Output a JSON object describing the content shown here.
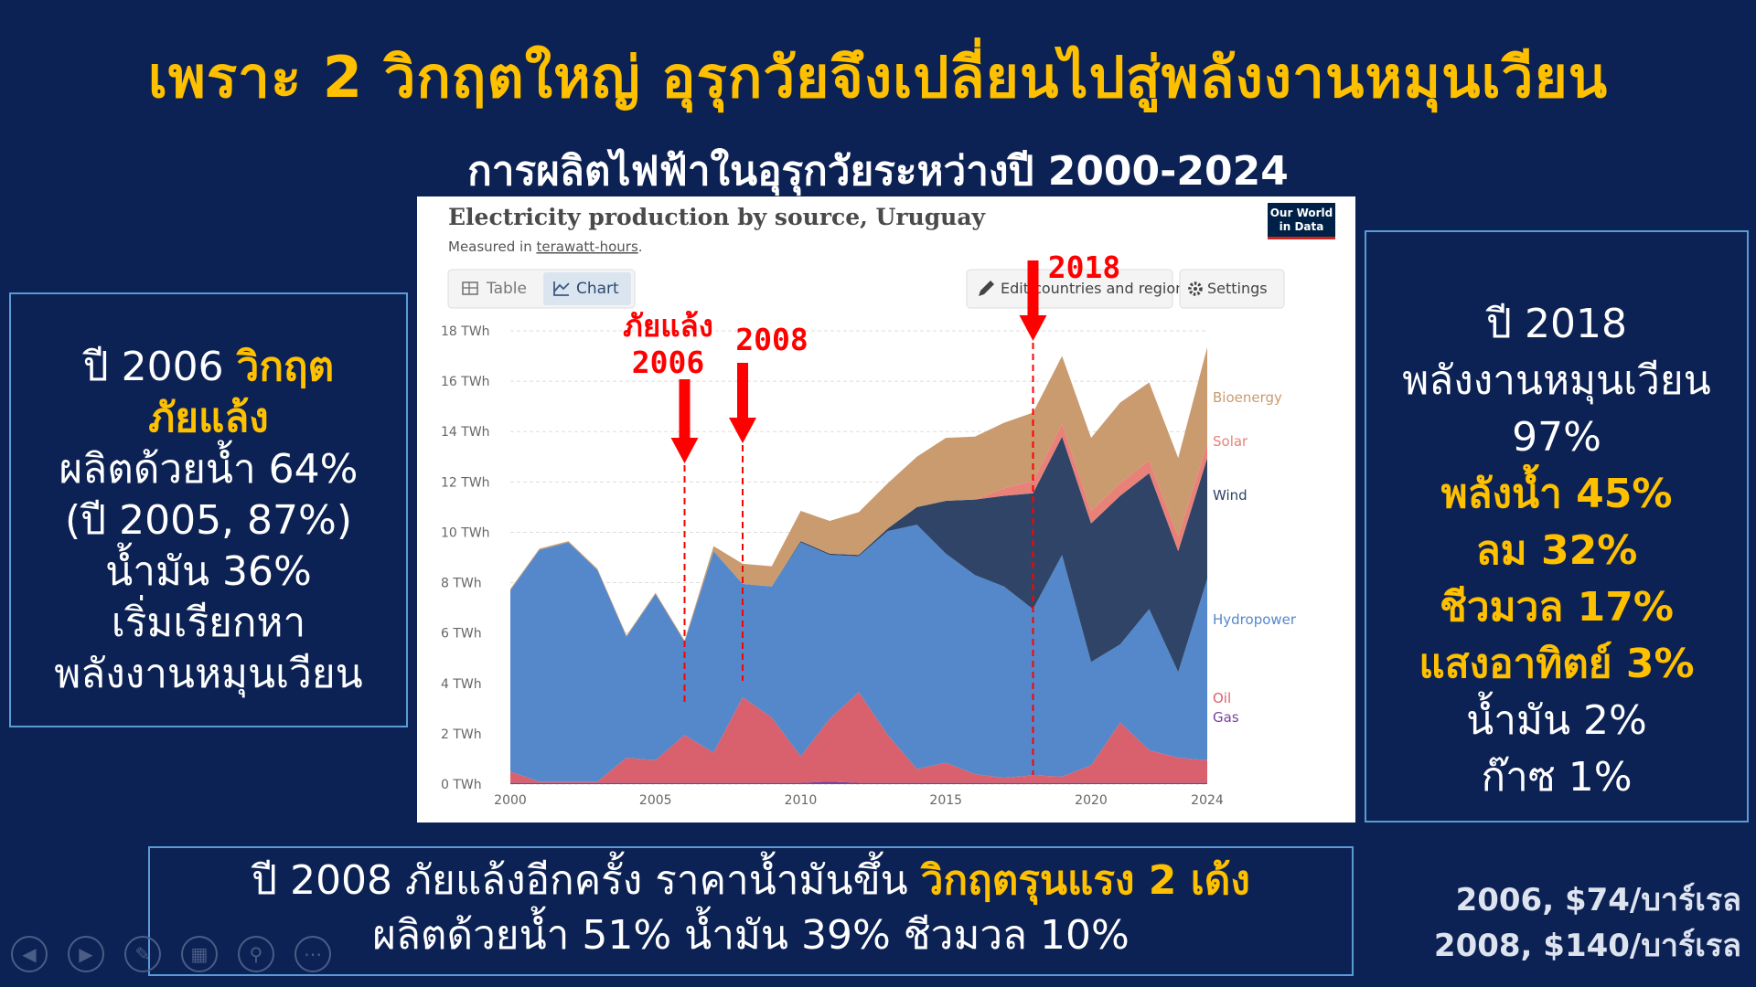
{
  "slide": {
    "title": "เพราะ 2 วิกฤตใหญ่  อุรุกวัยจึงเปลี่ยนไปสู่พลังงานหมุนเวียน",
    "subtitle": "การผลิตไฟฟ้าในอุรุกวัยระหว่างปี 2000-2024"
  },
  "left_box": {
    "line1_prefix": "ปี 2006 ",
    "line1_hl": "วิกฤต",
    "line2_hl": "ภัยแล้ง",
    "line3": "ผลิตด้วยน้ำ 64%",
    "line4": "(ปี 2005, 87%)",
    "line5": "น้ำมัน 36%",
    "line6": "เริ่มเรียกหา",
    "line7": "พลังงานหมุนเวียน"
  },
  "right_box": {
    "line1": "ปี 2018",
    "line2": "พลังงานหมุนเวียน",
    "line3": "97%",
    "hl1": "พลังน้ำ 45%",
    "hl2": "ลม 32%",
    "hl3": "ชีวมวล 17%",
    "hl4": "แสงอาทิตย์ 3%",
    "line4": "น้ำมัน 2%",
    "line5": "ก๊าซ 1%"
  },
  "bottom_box": {
    "line1_prefix": "ปี 2008 ภัยแล้งอีกครั้ง ราคาน้ำมันขึ้น ",
    "line1_hl": "วิกฤตรุนแรง 2 เด้ง",
    "line2": "ผลิตด้วยน้ำ  51%  น้ำมัน  39%  ชีวมวล 10%"
  },
  "price_note": {
    "line1": "2006, $74/บาร์เรล",
    "line2": "2008, $140/บาร์เรล"
  },
  "chart_header": {
    "title": "Electricity production by source, Uruguay",
    "subtitle_prefix": "Measured in ",
    "subtitle_link": "terawatt-hours",
    "subtitle_suffix": ".",
    "logo_line1": "Our World",
    "logo_line2": "in Data",
    "tab_table": "Table",
    "tab_chart": "Chart",
    "edit_button": "Edit countries and regions",
    "settings_button": "Settings"
  },
  "annotations": {
    "drought_label_1": "ภัยแล้ง",
    "drought_label_2": "2006",
    "label_2008": "2008",
    "label_2018": "2018"
  },
  "colors": {
    "background": "#0c2254",
    "accent": "#ffc000",
    "annotation": "#ff0000"
  },
  "chart_data": {
    "type": "area",
    "stacked": true,
    "title": "Electricity production by source, Uruguay",
    "subtitle": "Measured in terawatt-hours.",
    "x": [
      2000,
      2001,
      2002,
      2003,
      2004,
      2005,
      2006,
      2007,
      2008,
      2009,
      2010,
      2011,
      2012,
      2013,
      2014,
      2015,
      2016,
      2017,
      2018,
      2019,
      2020,
      2021,
      2022,
      2023,
      2024
    ],
    "ylim": [
      0,
      18
    ],
    "y_ticks": [
      "0 TWh",
      "2 TWh",
      "4 TWh",
      "6 TWh",
      "8 TWh",
      "10 TWh",
      "12 TWh",
      "14 TWh",
      "16 TWh",
      "18 TWh"
    ],
    "x_ticks": [
      "2000",
      "2005",
      "2010",
      "2015",
      "2020",
      "2024"
    ],
    "series": [
      {
        "name": "Gas",
        "color": "#7b3f9e",
        "values": [
          0.05,
          0.05,
          0.05,
          0.05,
          0.05,
          0.05,
          0.05,
          0.05,
          0.05,
          0.05,
          0.05,
          0.1,
          0.05,
          0.05,
          0.05,
          0.05,
          0.05,
          0.05,
          0.05,
          0.05,
          0.05,
          0.05,
          0.05,
          0.05,
          0.05
        ]
      },
      {
        "name": "Oil",
        "color": "#d9616e",
        "values": [
          0.45,
          0.05,
          0.05,
          0.05,
          1.0,
          0.9,
          1.9,
          1.2,
          3.4,
          2.6,
          1.05,
          2.5,
          3.6,
          1.9,
          0.55,
          0.8,
          0.35,
          0.2,
          0.3,
          0.25,
          0.7,
          2.4,
          1.3,
          1.0,
          0.9
        ]
      },
      {
        "name": "Hydropower",
        "color": "#5488ca",
        "values": [
          7.2,
          9.2,
          9.5,
          8.4,
          4.8,
          6.6,
          3.7,
          8.0,
          4.5,
          5.2,
          8.5,
          6.5,
          5.4,
          8.1,
          9.7,
          8.3,
          7.9,
          7.6,
          6.6,
          8.8,
          4.1,
          3.1,
          5.6,
          3.4,
          7.2
        ]
      },
      {
        "name": "Wind",
        "color": "#2f4466",
        "values": [
          0,
          0,
          0,
          0,
          0,
          0,
          0,
          0,
          0,
          0,
          0.05,
          0.05,
          0.05,
          0.1,
          0.7,
          2.1,
          3.0,
          3.6,
          4.6,
          4.7,
          5.5,
          5.9,
          5.4,
          4.8,
          4.8
        ]
      },
      {
        "name": "Solar",
        "color": "#e88278",
        "values": [
          0,
          0,
          0,
          0,
          0,
          0,
          0,
          0,
          0,
          0,
          0,
          0,
          0,
          0,
          0,
          0,
          0,
          0.3,
          0.5,
          0.5,
          0.5,
          0.5,
          0.5,
          0.6,
          0.6
        ]
      },
      {
        "name": "Bioenergy",
        "color": "#c99b6f",
        "values": [
          0.05,
          0.05,
          0.05,
          0.05,
          0.05,
          0.05,
          0.05,
          0.2,
          0.8,
          0.8,
          1.2,
          1.3,
          1.7,
          1.8,
          2.0,
          2.5,
          2.5,
          2.6,
          2.7,
          2.7,
          2.9,
          3.2,
          3.1,
          3.1,
          3.8
        ]
      }
    ]
  }
}
